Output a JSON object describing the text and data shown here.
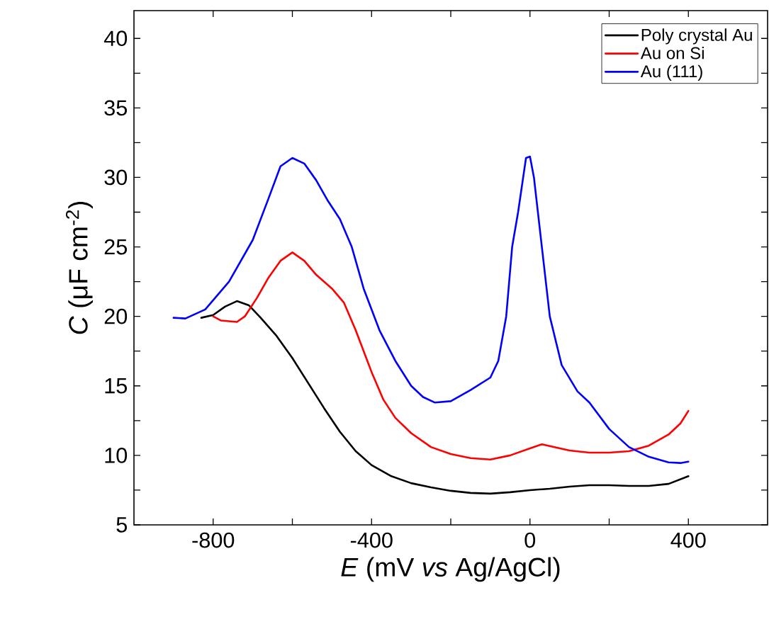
{
  "chart_data": {
    "type": "line",
    "xlabel": "*E*  (mV *vs* Ag/AgCl)",
    "ylabel": "*C* (μF cm$^{-2}$)",
    "xlim": [
      -1000,
      600
    ],
    "ylim": [
      5,
      42
    ],
    "xticks": [
      -800,
      {
        "value": -600,
        "label": null
      },
      -400,
      {
        "value": -200,
        "label": null
      },
      0,
      {
        "value": 200,
        "label": null
      },
      400
    ],
    "yticks": [
      5,
      {
        "value": 7.5,
        "label": null
      },
      10,
      {
        "value": 12.5,
        "label": null
      },
      15,
      {
        "value": 17.5,
        "label": null
      },
      20,
      {
        "value": 22.5,
        "label": null
      },
      25,
      {
        "value": 27.5,
        "label": null
      },
      30,
      {
        "value": 32.5,
        "label": null
      },
      35,
      {
        "value": 37.5,
        "label": null
      },
      40
    ],
    "legend": "top right",
    "line_style": "solid",
    "series": [
      {
        "name": "Poly crystal Au",
        "color": "#000000",
        "x": [
          -830,
          -800,
          -770,
          -740,
          -710,
          -680,
          -640,
          -600,
          -560,
          -520,
          -480,
          -440,
          -400,
          -350,
          -300,
          -250,
          -200,
          -150,
          -100,
          -50,
          0,
          50,
          100,
          150,
          200,
          250,
          300,
          350,
          400
        ],
        "values": [
          19.9,
          20.1,
          20.7,
          21.1,
          20.8,
          19.9,
          18.6,
          17,
          15.2,
          13.4,
          11.7,
          10.3,
          9.3,
          8.5,
          8,
          7.7,
          7.45,
          7.3,
          7.25,
          7.35,
          7.5,
          7.6,
          7.75,
          7.85,
          7.85,
          7.8,
          7.8,
          7.95,
          8.5
        ]
      },
      {
        "name": "Au on Si",
        "color": "#ff0000",
        "x": [
          -800,
          -780,
          -740,
          -720,
          -690,
          -660,
          -630,
          -600,
          -570,
          -540,
          -500,
          -470,
          -440,
          -400,
          -370,
          -340,
          -300,
          -250,
          -200,
          -150,
          -100,
          -50,
          0,
          30,
          60,
          100,
          150,
          200,
          250,
          300,
          350,
          380,
          400
        ],
        "values": [
          20,
          19.7,
          19.6,
          20,
          21.3,
          22.8,
          24,
          24.6,
          24,
          23,
          22,
          21,
          19,
          16,
          14,
          12.7,
          11.6,
          10.6,
          10.1,
          9.8,
          9.7,
          10,
          10.5,
          10.8,
          10.6,
          10.35,
          10.2,
          10.2,
          10.3,
          10.7,
          11.5,
          12.3,
          13.2
        ]
      },
      {
        "name": "Au (111)",
        "color": "#0000ff",
        "x": [
          -900,
          -870,
          -820,
          -760,
          -700,
          -660,
          -630,
          -600,
          -570,
          -540,
          -510,
          -480,
          -450,
          -420,
          -380,
          -340,
          -300,
          -270,
          -240,
          -200,
          -150,
          -100,
          -80,
          -60,
          -45,
          -30,
          -10,
          0,
          10,
          30,
          50,
          80,
          120,
          150,
          200,
          250,
          300,
          350,
          380,
          400
        ],
        "values": [
          19.9,
          19.85,
          20.5,
          22.5,
          25.5,
          28.5,
          30.8,
          31.4,
          31,
          29.8,
          28.3,
          27,
          25,
          22,
          19,
          16.8,
          15,
          14.2,
          13.8,
          13.9,
          14.7,
          15.6,
          16.8,
          20,
          25,
          27.5,
          31.4,
          31.5,
          30,
          25,
          20,
          16.5,
          14.6,
          13.8,
          11.9,
          10.6,
          9.9,
          9.5,
          9.45,
          9.55
        ]
      }
    ]
  }
}
